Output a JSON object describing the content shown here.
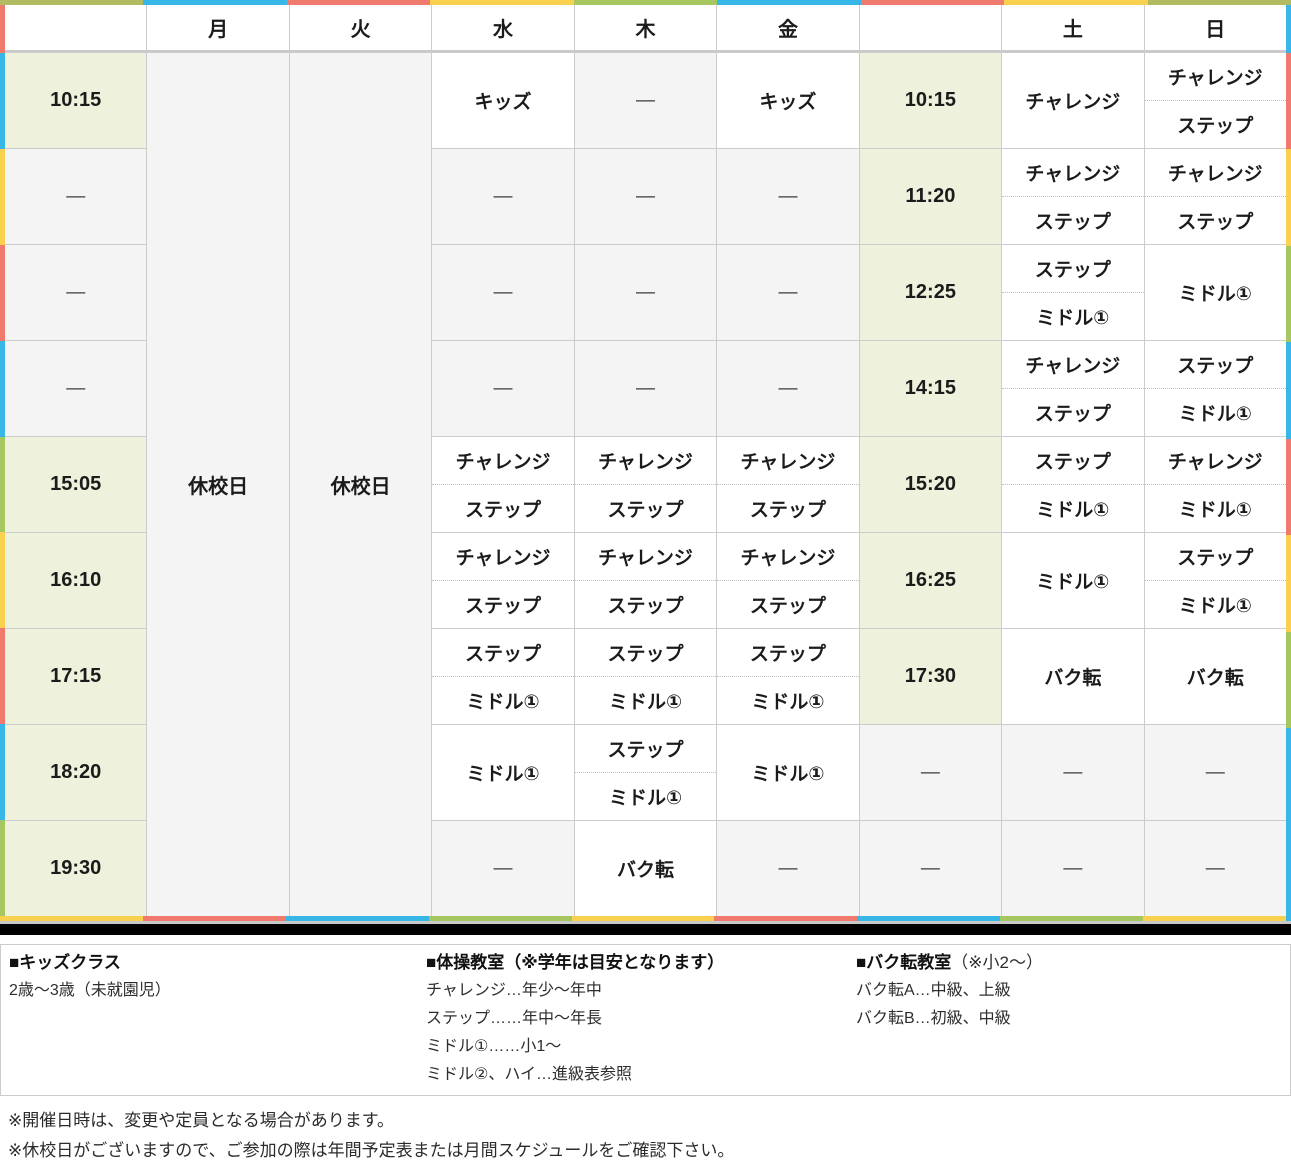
{
  "accent_colors": {
    "red": "#f07a6d",
    "blue": "#36b7e8",
    "yellow": "#fad04f",
    "green": "#a6c760",
    "olive": "#b1bb62"
  },
  "edges": {
    "top": [
      "olive",
      "blue",
      "red",
      "yellow",
      "green",
      "blue",
      "red",
      "yellow",
      "olive"
    ],
    "bottom": [
      "yellow",
      "red",
      "blue",
      "green",
      "yellow",
      "red",
      "blue",
      "green",
      "yellow"
    ],
    "left": [
      "red",
      "blue",
      "yellow",
      "red",
      "blue",
      "green",
      "yellow",
      "red",
      "blue",
      "green"
    ],
    "right": [
      "blue",
      "red",
      "yellow",
      "green",
      "blue",
      "red",
      "yellow",
      "green",
      "blue",
      "blue"
    ]
  },
  "table": {
    "dash": "—",
    "columns": [
      {
        "key": "time",
        "header": ""
      },
      {
        "key": "mon",
        "header": "月"
      },
      {
        "key": "tue",
        "header": "火"
      },
      {
        "key": "wed",
        "header": "水"
      },
      {
        "key": "thu",
        "header": "木"
      },
      {
        "key": "fri",
        "header": "金"
      },
      {
        "key": "wtime",
        "header": ""
      },
      {
        "key": "sat",
        "header": "土"
      },
      {
        "key": "sun",
        "header": "日"
      }
    ],
    "closed": {
      "mon": "休校日",
      "tue": "休校日"
    },
    "rows": [
      {
        "time": "10:15",
        "wed": [
          "キッズ"
        ],
        "thu": null,
        "fri": [
          "キッズ"
        ],
        "wtime": "10:15",
        "sat": [
          "チャレンジ"
        ],
        "sun": [
          "チャレンジ",
          "ステップ"
        ]
      },
      {
        "time": null,
        "wed": null,
        "thu": null,
        "fri": null,
        "wtime": "11:20",
        "sat": [
          "チャレンジ",
          "ステップ"
        ],
        "sun": [
          "チャレンジ",
          "ステップ"
        ]
      },
      {
        "time": null,
        "wed": null,
        "thu": null,
        "fri": null,
        "wtime": "12:25",
        "sat": [
          "ステップ",
          "ミドル①"
        ],
        "sun": [
          "ミドル①"
        ]
      },
      {
        "time": null,
        "wed": null,
        "thu": null,
        "fri": null,
        "wtime": "14:15",
        "sat": [
          "チャレンジ",
          "ステップ"
        ],
        "sun": [
          "ステップ",
          "ミドル①"
        ]
      },
      {
        "time": "15:05",
        "wed": [
          "チャレンジ",
          "ステップ"
        ],
        "thu": [
          "チャレンジ",
          "ステップ"
        ],
        "fri": [
          "チャレンジ",
          "ステップ"
        ],
        "wtime": "15:20",
        "sat": [
          "ステップ",
          "ミドル①"
        ],
        "sun": [
          "チャレンジ",
          "ミドル①"
        ]
      },
      {
        "time": "16:10",
        "wed": [
          "チャレンジ",
          "ステップ"
        ],
        "thu": [
          "チャレンジ",
          "ステップ"
        ],
        "fri": [
          "チャレンジ",
          "ステップ"
        ],
        "wtime": "16:25",
        "sat": [
          "ミドル①"
        ],
        "sun": [
          "ステップ",
          "ミドル①"
        ]
      },
      {
        "time": "17:15",
        "wed": [
          "ステップ",
          "ミドル①"
        ],
        "thu": [
          "ステップ",
          "ミドル①"
        ],
        "fri": [
          "ステップ",
          "ミドル①"
        ],
        "wtime": "17:30",
        "sat": [
          "バク転"
        ],
        "sun": [
          "バク転"
        ]
      },
      {
        "time": "18:20",
        "wed": [
          "ミドル①"
        ],
        "thu": [
          "ステップ",
          "ミドル①"
        ],
        "fri": [
          "ミドル①"
        ],
        "wtime": null,
        "sat": null,
        "sun": null
      },
      {
        "time": "19:30",
        "wed": null,
        "thu": [
          "バク転"
        ],
        "fri": null,
        "wtime": null,
        "sat": null,
        "sun": null
      }
    ]
  },
  "legend": {
    "kids": {
      "title": "■キッズクラス",
      "suffix": "",
      "lines": [
        "2歳〜3歳（未就園児）"
      ]
    },
    "taisou": {
      "title": "■体操教室（※学年は目安となります）",
      "suffix": "",
      "lines": [
        "チャレンジ…年少〜年中",
        "ステップ……年中〜年長",
        "ミドル①……小1〜",
        "ミドル②、ハイ…進級表参照"
      ]
    },
    "bakuten": {
      "title": "■バク転教室",
      "suffix": "（※小2〜）",
      "lines": [
        "バク転A…中級、上級",
        "バク転B…初級、中級"
      ]
    }
  },
  "notes": [
    "※開催日時は、変更や定員となる場合があります。",
    "※休校日がございますので、ご参加の際は年間予定表または月間スケジュールをご確認下さい。"
  ]
}
